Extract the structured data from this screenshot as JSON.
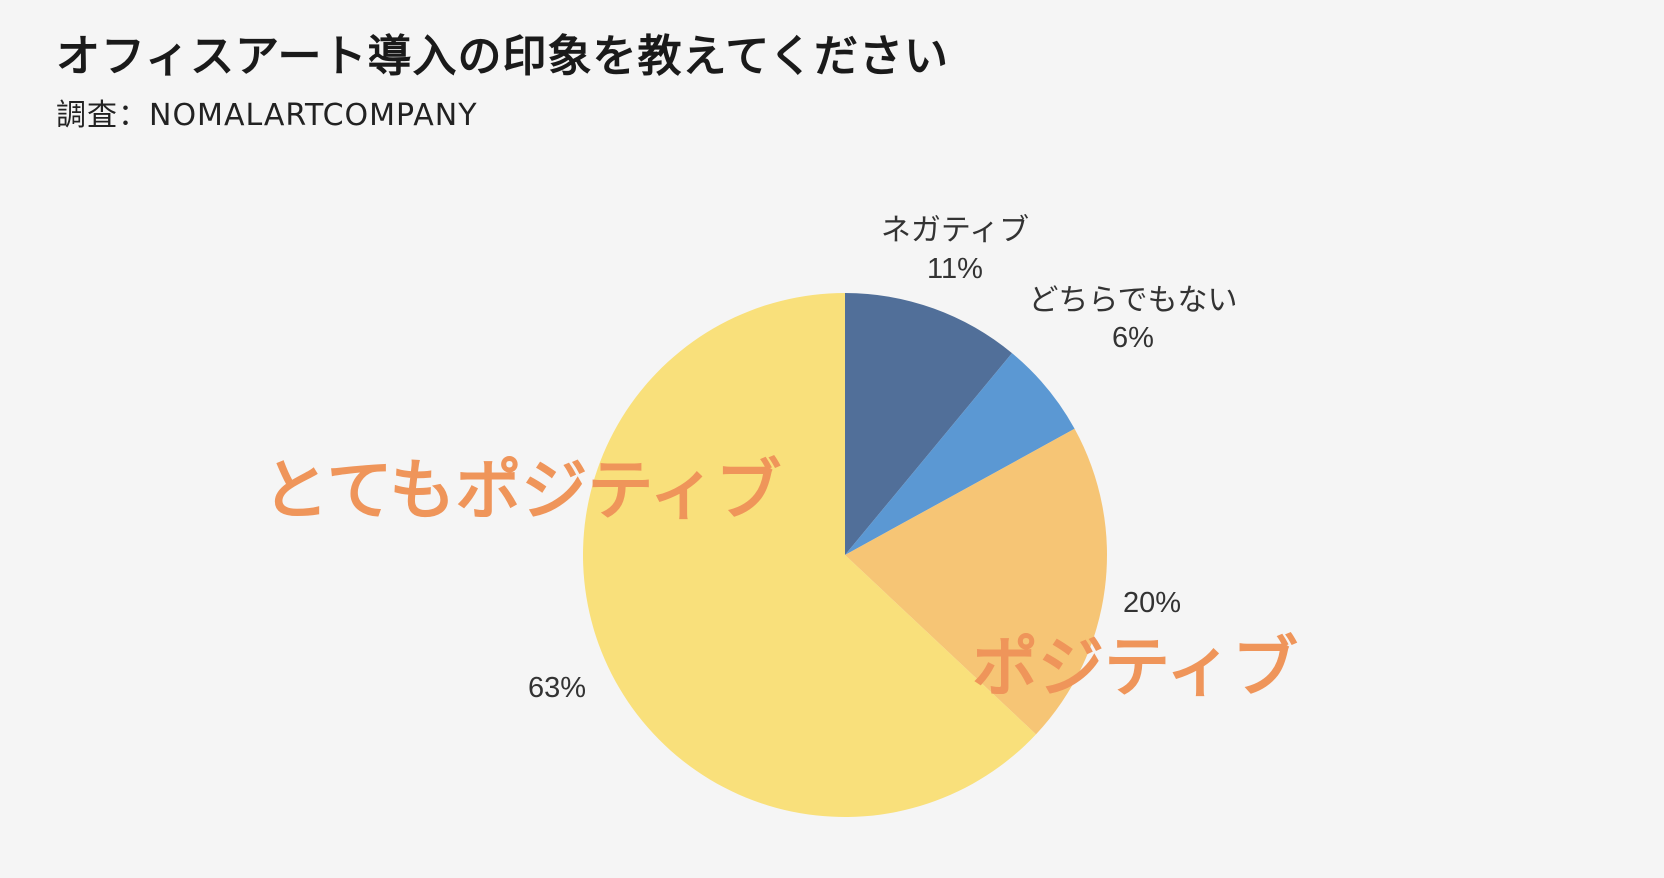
{
  "header": {
    "title": "オフィスアート導入の印象を教えてください",
    "subtitle": "調査：NOMALARTCOMPANY"
  },
  "colors": {
    "background": "#f5f5f5",
    "accent_label": "#ef955a"
  },
  "chart_data": {
    "type": "pie",
    "start_angle_deg": 0,
    "direction": "clockwise",
    "slices": [
      {
        "name": "ネガティブ",
        "value": 11,
        "value_label": "11%",
        "color": "#516f99"
      },
      {
        "name": "どちらでもない",
        "value": 6,
        "value_label": "6%",
        "color": "#5b98d3"
      },
      {
        "name": "ポジティブ",
        "value": 20,
        "value_label": "20%",
        "color": "#f6c575"
      },
      {
        "name": "とてもポジティブ",
        "value": 63,
        "value_label": "63%",
        "color": "#f9e07b"
      }
    ]
  }
}
